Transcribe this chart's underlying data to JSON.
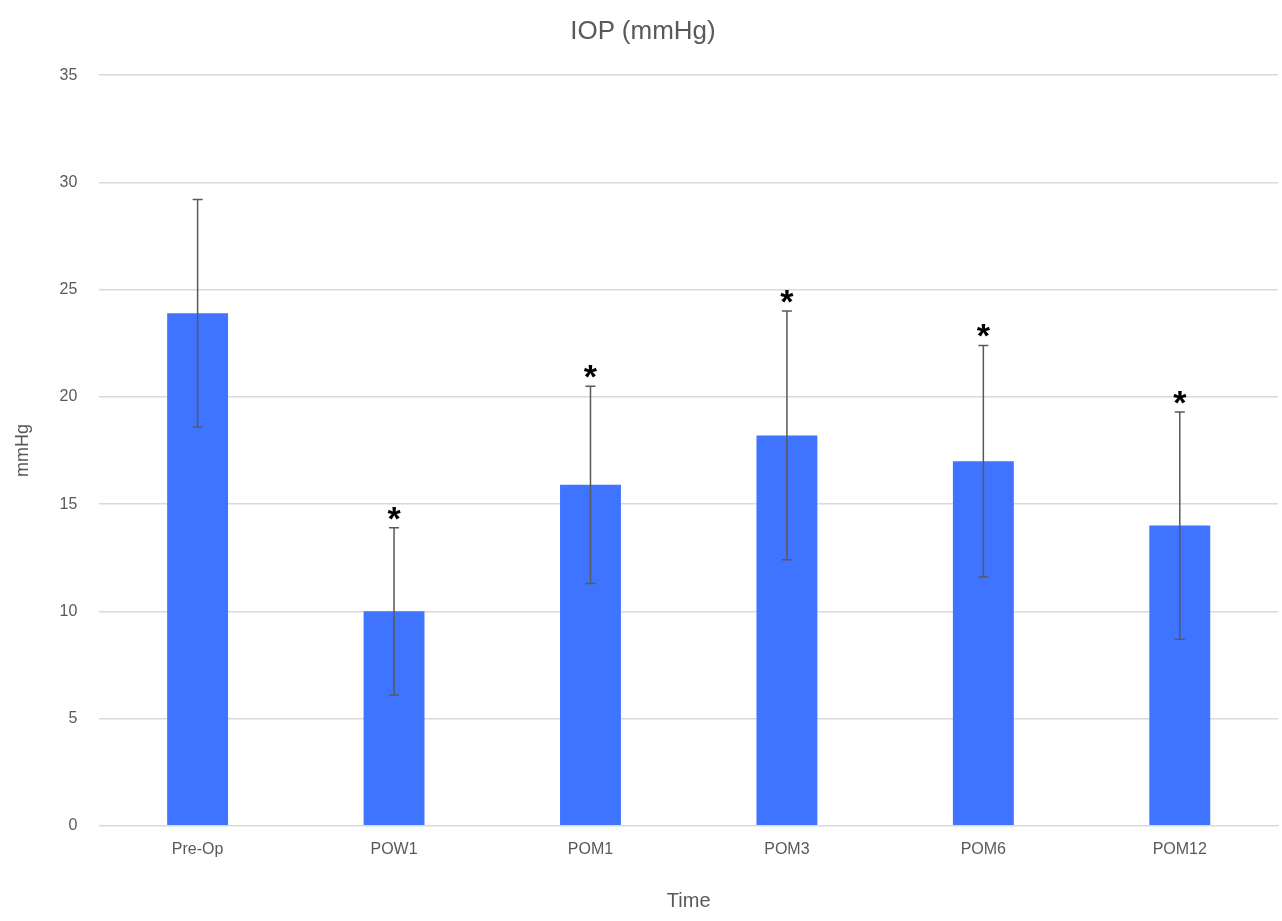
{
  "chart_data": {
    "type": "bar",
    "title": "IOP (mmHg)",
    "xlabel": "Time",
    "ylabel": "mmHg",
    "categories": [
      "Pre-Op",
      "POW1",
      "POM1",
      "POM3",
      "POM6",
      "POM12"
    ],
    "values": [
      23.9,
      10.0,
      15.9,
      18.2,
      17.0,
      14.0
    ],
    "errors": [
      5.3,
      3.9,
      4.6,
      5.8,
      5.4,
      5.3
    ],
    "color": "#3e74ff",
    "ylim": [
      0,
      35
    ],
    "yticks": [
      0,
      5,
      10,
      15,
      20,
      25,
      30,
      35
    ],
    "grid": "y",
    "legend": false,
    "annotations": [
      {
        "text": "*",
        "x": "POW1",
        "y": 13.9
      },
      {
        "text": "*",
        "x": "POM1",
        "y": 20.5
      },
      {
        "text": "*",
        "x": "POM3",
        "y": 24.0
      },
      {
        "text": "*",
        "x": "POM6",
        "y": 22.4
      },
      {
        "text": "*",
        "x": "POM12",
        "y": 19.3
      }
    ]
  }
}
